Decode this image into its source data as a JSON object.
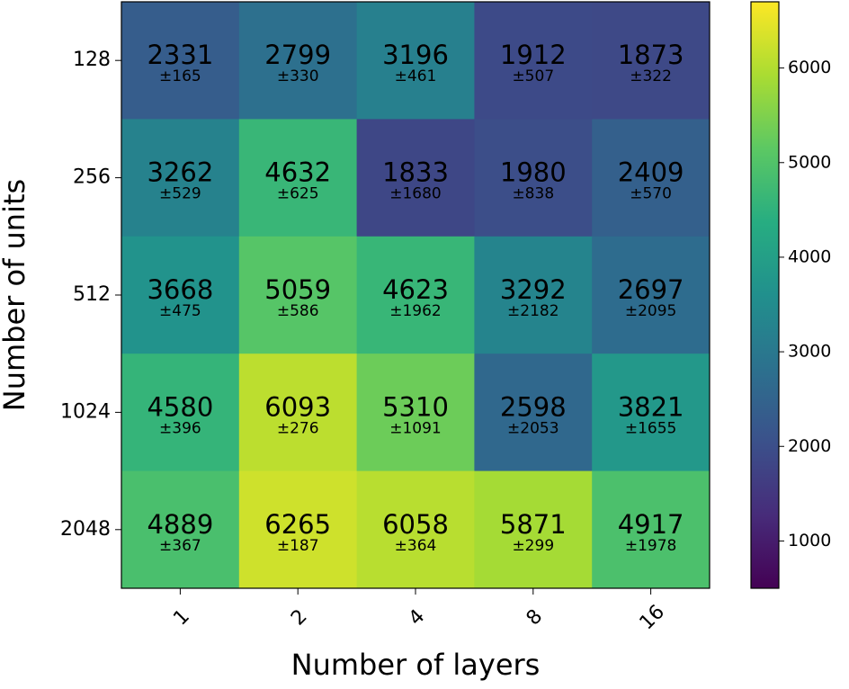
{
  "chart_data": {
    "type": "heatmap",
    "xlabel": "Number of layers",
    "ylabel": "Number of units",
    "x_categories": [
      "1",
      "2",
      "4",
      "8",
      "16"
    ],
    "y_categories": [
      "128",
      "256",
      "512",
      "1024",
      "2048"
    ],
    "values": [
      [
        2331,
        2799,
        3196,
        1912,
        1873
      ],
      [
        3262,
        4632,
        1833,
        1980,
        2409
      ],
      [
        3668,
        5059,
        4623,
        3292,
        2697
      ],
      [
        4580,
        6093,
        5310,
        2598,
        3821
      ],
      [
        4889,
        6265,
        6058,
        5871,
        4917
      ]
    ],
    "errors": [
      [
        165,
        330,
        461,
        507,
        322
      ],
      [
        529,
        625,
        1680,
        838,
        570
      ],
      [
        475,
        586,
        1962,
        2182,
        2095
      ],
      [
        396,
        276,
        1091,
        2053,
        1655
      ],
      [
        367,
        187,
        364,
        299,
        1978
      ]
    ],
    "error_labels": [
      [
        "±165",
        "±330",
        "±461",
        "±507",
        "±322"
      ],
      [
        "±529",
        "±625",
        "±1680",
        "±838",
        "±570"
      ],
      [
        "±475",
        "±586",
        "±1962",
        "±2182",
        "±2095"
      ],
      [
        "±396",
        "±276",
        "±1091",
        "±2053",
        "±1655"
      ],
      [
        "±367",
        "±187",
        "±364",
        "±299",
        "±1978"
      ]
    ],
    "colormap": "viridis",
    "colorbar_lim": [
      500,
      6700
    ],
    "colorbar_ticks": [
      1000,
      2000,
      3000,
      4000,
      5000,
      6000
    ]
  }
}
